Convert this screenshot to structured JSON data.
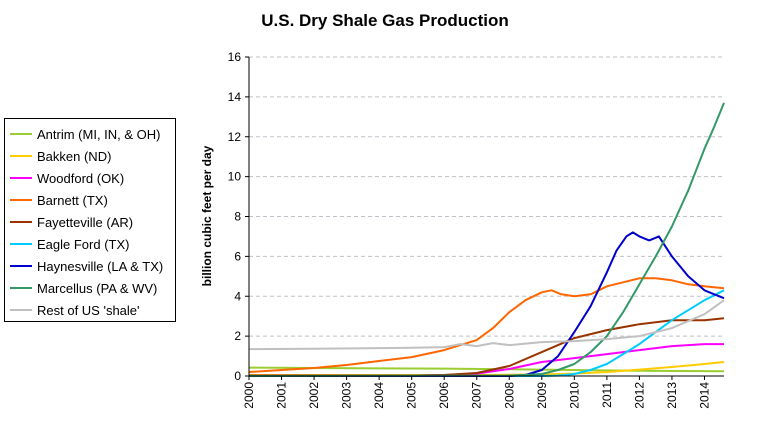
{
  "chart_data": {
    "type": "line",
    "title": "U.S. Dry Shale Gas Production",
    "xlabel": "",
    "ylabel": "billion cubic feet per day",
    "xlim": [
      2000,
      2014.6
    ],
    "ylim": [
      0,
      16
    ],
    "x_ticks": [
      "2000",
      "2001",
      "2002",
      "2003",
      "2004",
      "2005",
      "2006",
      "2007",
      "2008",
      "2009",
      "2010",
      "2011",
      "2012",
      "2013",
      "2014"
    ],
    "y_ticks": [
      "0",
      "2",
      "4",
      "6",
      "8",
      "10",
      "12",
      "14",
      "16"
    ],
    "grid": "horizontal dashed",
    "legend_position": "left",
    "series": [
      {
        "name": "Antrim (MI, IN, & OH)",
        "color": "#9ACD32",
        "x": [
          2000,
          2002,
          2004,
          2006,
          2008,
          2010,
          2012,
          2014.6
        ],
        "values": [
          0.42,
          0.4,
          0.38,
          0.37,
          0.34,
          0.3,
          0.26,
          0.24
        ]
      },
      {
        "name": "Bakken (ND)",
        "color": "#FFCC00",
        "x": [
          2000,
          2005,
          2007,
          2008,
          2009,
          2010,
          2011,
          2012,
          2013,
          2014,
          2014.6
        ],
        "values": [
          0.05,
          0.05,
          0.05,
          0.06,
          0.08,
          0.12,
          0.2,
          0.32,
          0.45,
          0.6,
          0.7
        ]
      },
      {
        "name": "Woodford (OK)",
        "color": "#FF00FF",
        "x": [
          2000,
          2005,
          2006,
          2007,
          2008,
          2009,
          2010,
          2011,
          2012,
          2013,
          2014,
          2014.6
        ],
        "values": [
          0.02,
          0.02,
          0.05,
          0.12,
          0.35,
          0.7,
          0.9,
          1.1,
          1.3,
          1.5,
          1.6,
          1.6
        ]
      },
      {
        "name": "Barnett (TX)",
        "color": "#FF6600",
        "x": [
          2000,
          2001,
          2002,
          2003,
          2004,
          2005,
          2006,
          2007,
          2007.5,
          2008,
          2008.5,
          2009,
          2009.3,
          2009.6,
          2010,
          2010.5,
          2011,
          2011.5,
          2012,
          2012.5,
          2013,
          2013.5,
          2014,
          2014.6
        ],
        "values": [
          0.2,
          0.3,
          0.4,
          0.55,
          0.75,
          0.95,
          1.3,
          1.8,
          2.4,
          3.2,
          3.8,
          4.2,
          4.3,
          4.1,
          4.0,
          4.1,
          4.5,
          4.7,
          4.9,
          4.9,
          4.8,
          4.6,
          4.5,
          4.4
        ]
      },
      {
        "name": "Fayetteville (AR)",
        "color": "#993300",
        "x": [
          2000,
          2005,
          2006,
          2007,
          2008,
          2009,
          2010,
          2011,
          2012,
          2013,
          2014,
          2014.6
        ],
        "values": [
          0.02,
          0.02,
          0.05,
          0.15,
          0.5,
          1.2,
          1.9,
          2.3,
          2.6,
          2.8,
          2.8,
          2.9
        ]
      },
      {
        "name": "Eagle Ford (TX)",
        "color": "#00CCFF",
        "x": [
          2000,
          2009,
          2009.5,
          2010,
          2010.5,
          2011,
          2011.5,
          2012,
          2012.5,
          2013,
          2013.5,
          2014,
          2014.6
        ],
        "values": [
          0.0,
          0.0,
          0.02,
          0.1,
          0.3,
          0.6,
          1.1,
          1.6,
          2.2,
          2.8,
          3.3,
          3.8,
          4.3
        ]
      },
      {
        "name": "Haynesville (LA & TX)",
        "color": "#0000CC",
        "x": [
          2000,
          2008,
          2008.5,
          2009,
          2009.5,
          2010,
          2010.5,
          2011,
          2011.3,
          2011.6,
          2011.8,
          2012,
          2012.3,
          2012.6,
          2013,
          2013.5,
          2014,
          2014.3,
          2014.6
        ],
        "values": [
          0.0,
          0.0,
          0.05,
          0.3,
          1.0,
          2.2,
          3.5,
          5.2,
          6.3,
          7.0,
          7.2,
          7.0,
          6.8,
          7.0,
          6.0,
          5.0,
          4.3,
          4.1,
          3.9
        ]
      },
      {
        "name": "Marcellus (PA & WV)",
        "color": "#339966",
        "x": [
          2000,
          2008,
          2009,
          2009.5,
          2010,
          2010.5,
          2011,
          2011.5,
          2012,
          2012.5,
          2013,
          2013.5,
          2014,
          2014.3,
          2014.6
        ],
        "values": [
          0.0,
          0.02,
          0.1,
          0.3,
          0.6,
          1.2,
          2.0,
          3.2,
          4.6,
          6.0,
          7.5,
          9.3,
          11.4,
          12.5,
          13.7
        ]
      },
      {
        "name": "Rest of US 'shale'",
        "color": "#C0C0C0",
        "x": [
          2000,
          2002,
          2004,
          2005,
          2006,
          2006.5,
          2007,
          2007.5,
          2008,
          2009,
          2010,
          2011,
          2012,
          2013,
          2014,
          2014.6
        ],
        "values": [
          1.35,
          1.37,
          1.4,
          1.42,
          1.45,
          1.6,
          1.5,
          1.65,
          1.55,
          1.7,
          1.75,
          1.85,
          2.0,
          2.4,
          3.1,
          3.8
        ]
      }
    ]
  }
}
